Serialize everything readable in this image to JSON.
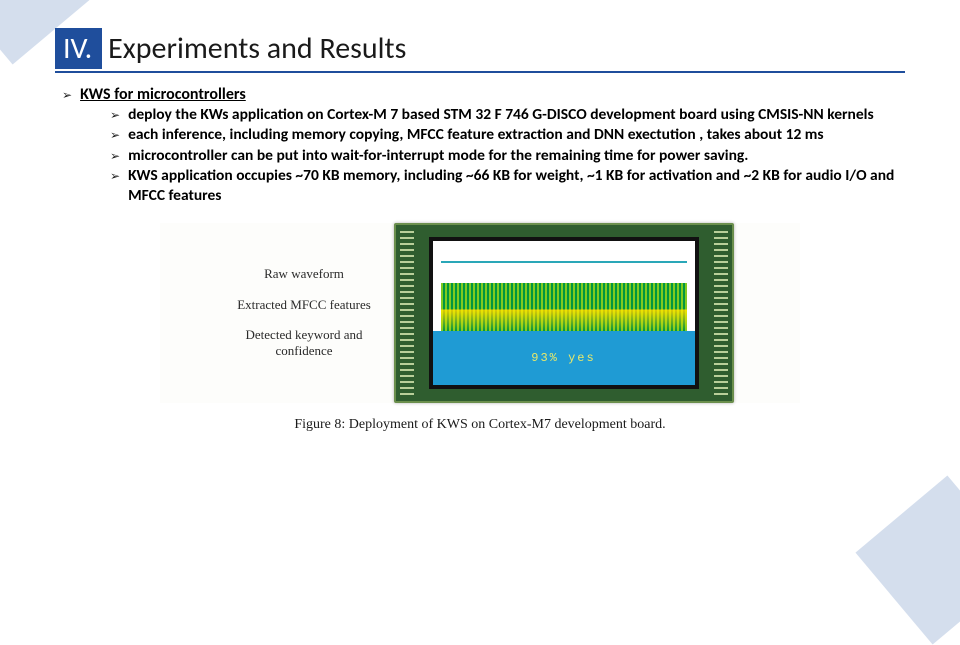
{
  "header": {
    "roman": "IV.",
    "title": "Experiments and Results"
  },
  "bullet_lvl1": "KWS for microcontrollers",
  "bullets_lvl2": [
    "deploy the KWs application on Cortex-M 7 based STM 32 F 746 G-DISCO development board using CMSIS-NN kernels",
    "each inference, including memory copying, MFCC feature extraction and DNN exectution , takes about 12 ms",
    "microcontroller can be put into wait-for-interrupt mode for the remaining time for power saving.",
    "KWS application occupies ~70 KB memory, including ~66 KB for weight, ~1 KB for activation and ~2 KB for audio I/O and MFCC features"
  ],
  "figure": {
    "label1": "Raw waveform",
    "label2": "Extracted MFCC features",
    "label3": "Detected keyword and confidence",
    "keyword_text": "93% yes",
    "caption": "Figure 8:  Deployment of KWS on Cortex-M7 development board.",
    "colors": {
      "board": "#2f5d2f",
      "screen_border": "#111111",
      "wave": "#2aa7b8",
      "mfcc_green": "#00963f",
      "mfcc_yellow": "#e6cc00",
      "keyword_bg": "#1f9bd4",
      "keyword_text": "#e9e96a"
    }
  }
}
